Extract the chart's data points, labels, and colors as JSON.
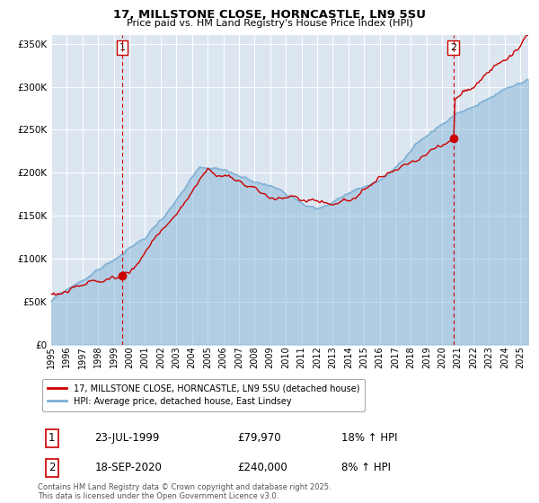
{
  "title": "17, MILLSTONE CLOSE, HORNCASTLE, LN9 5SU",
  "subtitle": "Price paid vs. HM Land Registry's House Price Index (HPI)",
  "legend_label_red": "17, MILLSTONE CLOSE, HORNCASTLE, LN9 5SU (detached house)",
  "legend_label_blue": "HPI: Average price, detached house, East Lindsey",
  "annotation1_label": "1",
  "annotation1_date": "23-JUL-1999",
  "annotation1_price": "£79,970",
  "annotation1_hpi": "18% ↑ HPI",
  "annotation1_year": 1999.55,
  "annotation1_value": 79970,
  "annotation2_label": "2",
  "annotation2_date": "18-SEP-2020",
  "annotation2_price": "£240,000",
  "annotation2_hpi": "8% ↑ HPI",
  "annotation2_year": 2020.71,
  "annotation2_value": 240000,
  "footer": "Contains HM Land Registry data © Crown copyright and database right 2025.\nThis data is licensed under the Open Government Licence v3.0.",
  "ylim": [
    0,
    360000
  ],
  "yticks": [
    0,
    50000,
    100000,
    150000,
    200000,
    250000,
    300000,
    350000
  ],
  "plot_bg_color": "#dce6f1",
  "red_color": "#cc0000",
  "blue_color": "#7bafd4",
  "grid_color": "#ffffff",
  "dashed_color": "#cc0000",
  "xmin": 1995.0,
  "xmax": 2025.5
}
